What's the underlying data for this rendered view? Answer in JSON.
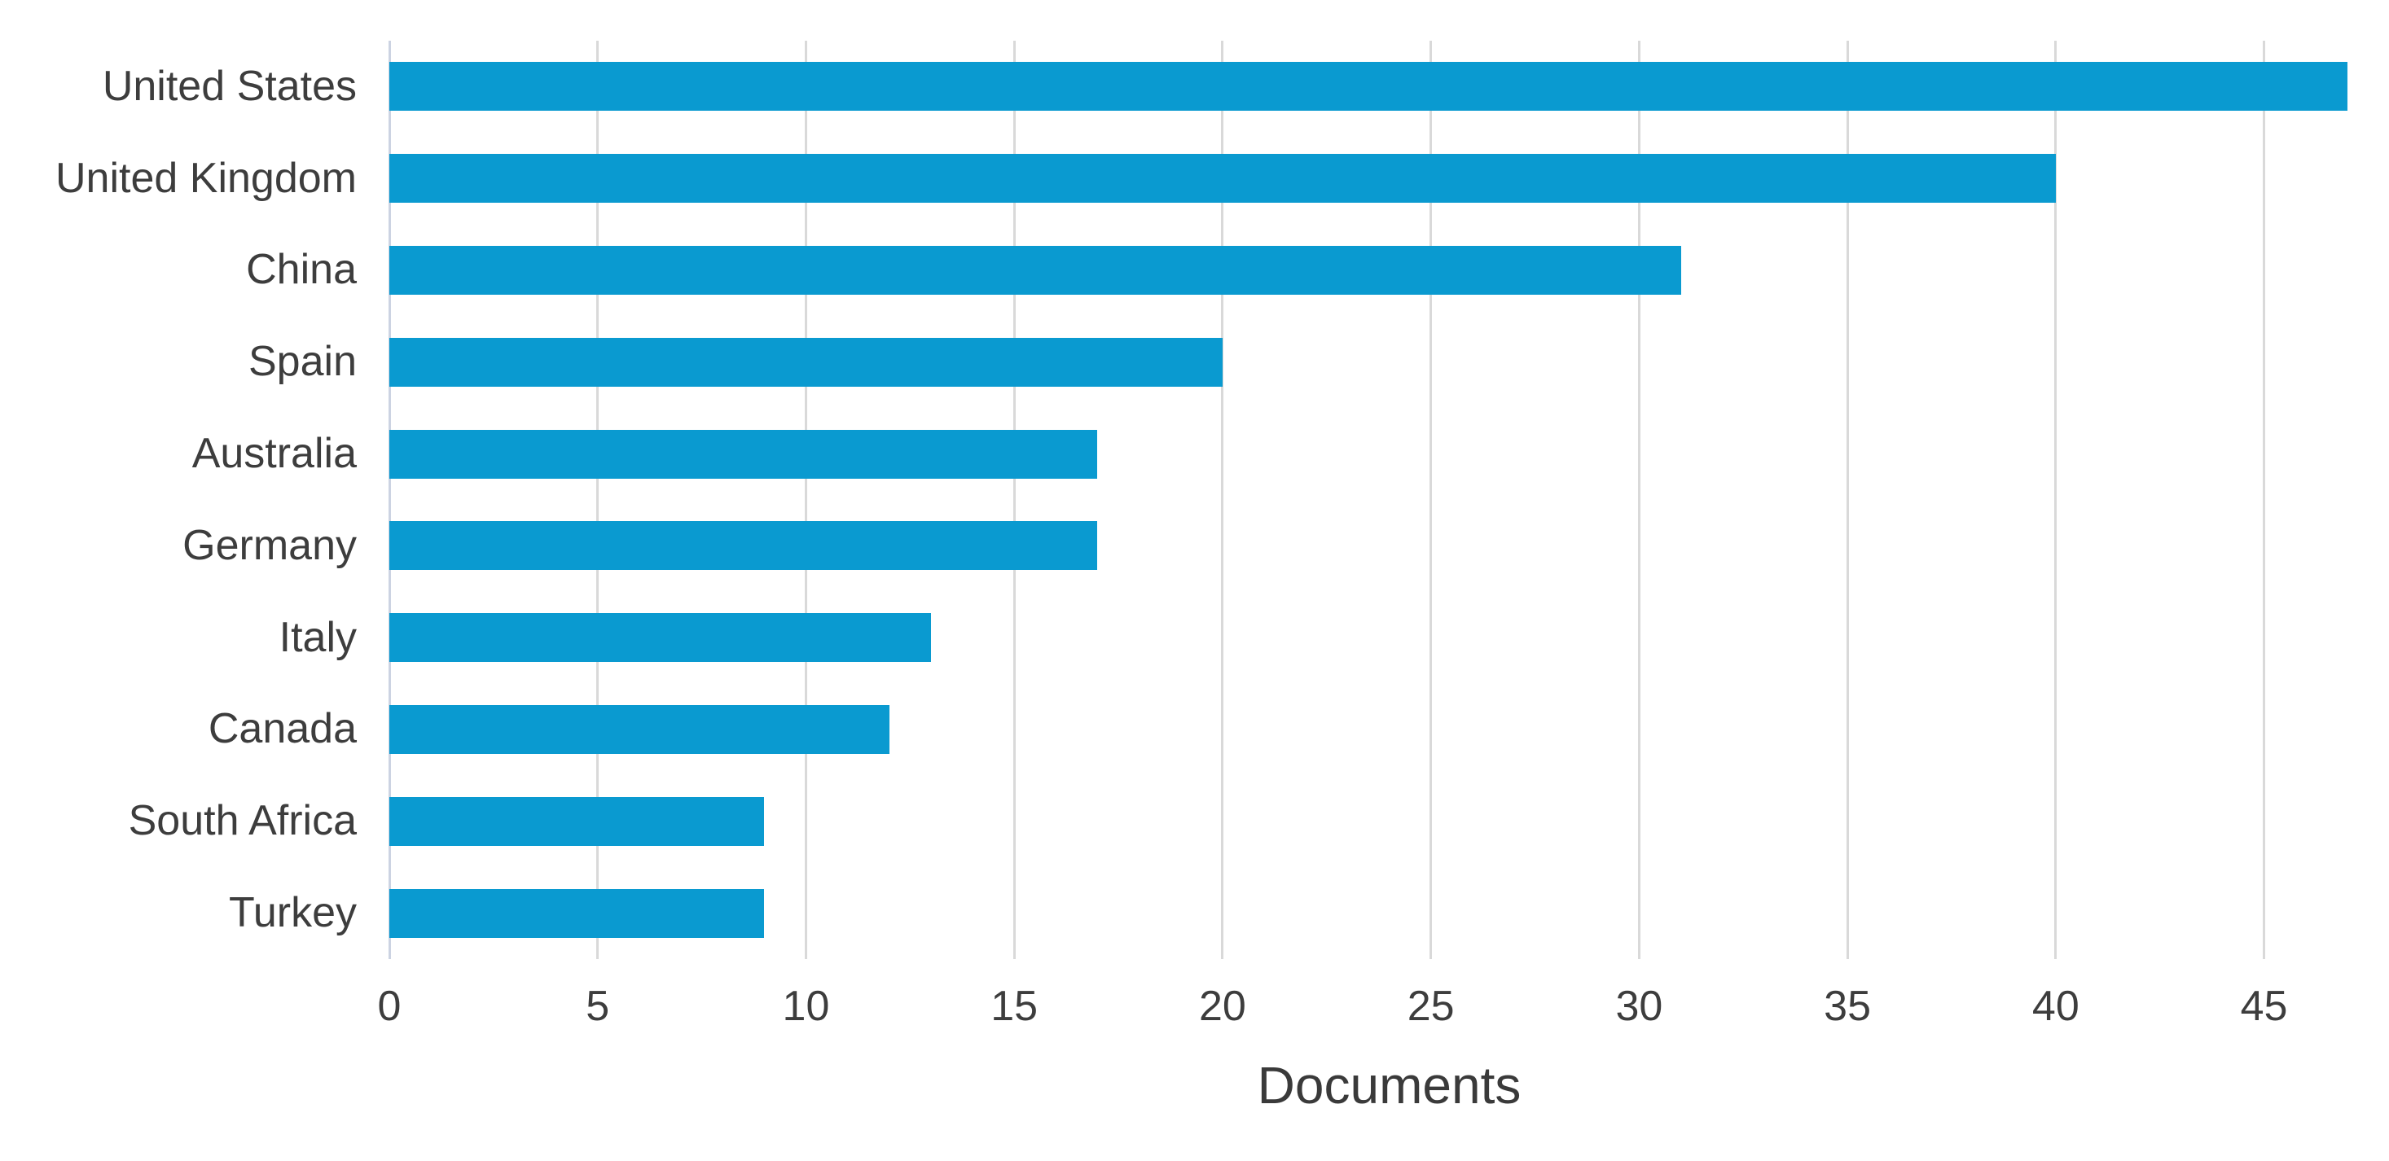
{
  "chart_data": {
    "type": "bar",
    "orientation": "horizontal",
    "title": "",
    "xlabel": "Documents",
    "ylabel": "",
    "categories": [
      "United States",
      "United Kingdom",
      "China",
      "Spain",
      "Australia",
      "Germany",
      "Italy",
      "Canada",
      "South Africa",
      "Turkey"
    ],
    "values": [
      47,
      40,
      31,
      20,
      17,
      17,
      13,
      12,
      9,
      9
    ],
    "series_name": "Documents",
    "xlim": [
      0,
      48
    ],
    "xticks": [
      0,
      5,
      10,
      15,
      20,
      25,
      30,
      35,
      40,
      45
    ],
    "grid": "vertical-only",
    "legend_position": "none",
    "colors": {
      "bar": "#0a9ad0",
      "gridline": "#d9d9d9",
      "zero_line": "#ccd3e2",
      "category_label_text": "#3d3d3d",
      "tick_label_text": "#3d3d3d",
      "axis_title_text": "#3a3a3a",
      "background": "#ffffff"
    }
  }
}
